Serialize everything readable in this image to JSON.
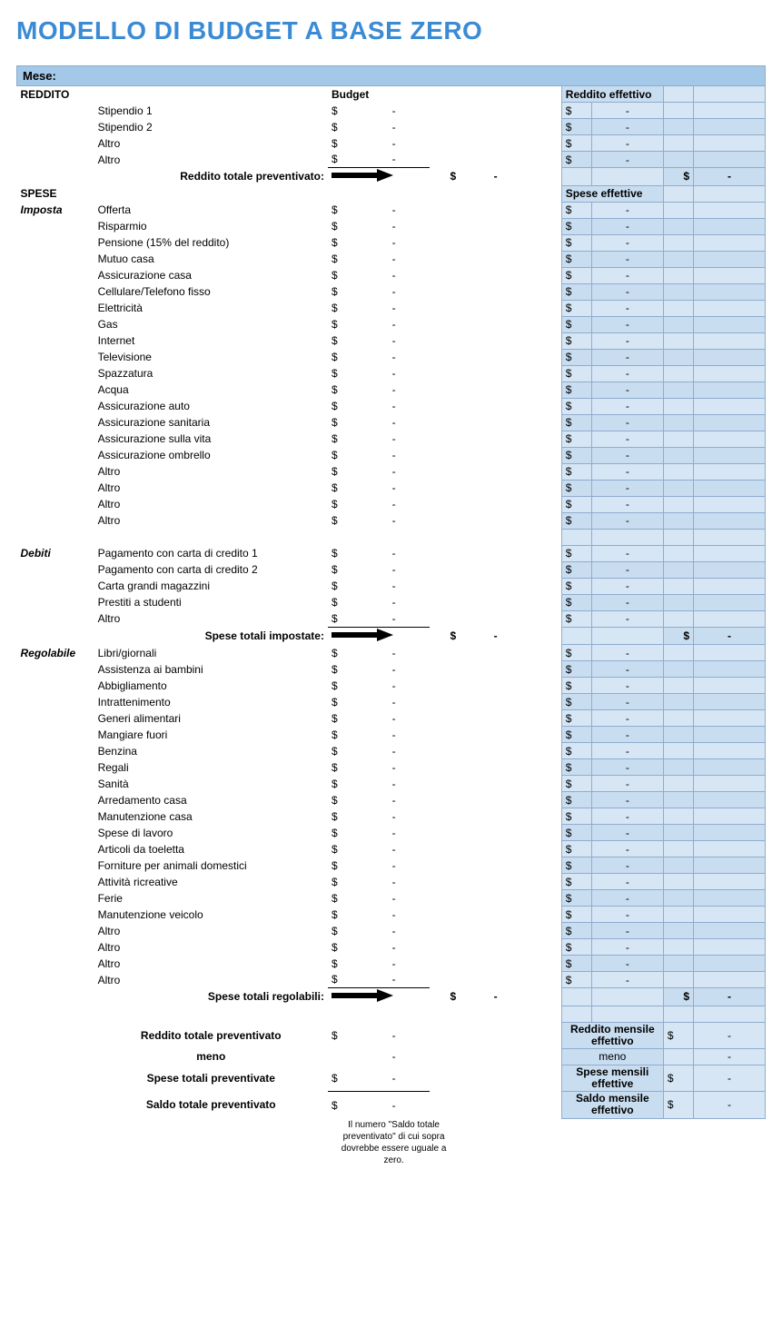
{
  "colors": {
    "title": "#3b8bd4",
    "mese_bg": "#a4c9e8",
    "actual_header_bg": "#c9ddf0",
    "actual_cell_bg": "#d6e6f5",
    "actual_cell_bg_alt": "#c9ddf0",
    "grid_border": "#8faccd",
    "text": "#000000",
    "background": "#ffffff"
  },
  "typography": {
    "title_fontsize": 28,
    "title_weight": 700,
    "body_fontsize": 12,
    "font_family": "Century Gothic / geometric sans"
  },
  "title": "MODELLO DI BUDGET A BASE ZERO",
  "mese_label": "Mese:",
  "column_headers": {
    "budget": "Budget",
    "actual_income": "Reddito effettivo",
    "actual_expenses": "Spese effettive"
  },
  "section_labels": {
    "reddito": "REDDITO",
    "spese": "SPESE",
    "imposta": "Imposta",
    "debiti": "Debiti",
    "regolabile": "Regolabile"
  },
  "income_items": [
    "Stipendio 1",
    "Stipendio 2",
    "Altro",
    "Altro"
  ],
  "imposta_items": [
    "Offerta",
    "Risparmio",
    "Pensione (15% del reddito)",
    "Mutuo casa",
    "Assicurazione casa",
    "Cellulare/Telefono fisso",
    "Elettricità",
    "Gas",
    "Internet",
    "Televisione",
    "Spazzatura",
    "Acqua",
    "Assicurazione auto",
    "Assicurazione sanitaria",
    "Assicurazione sulla vita",
    "Assicurazione ombrello",
    "Altro",
    "Altro",
    "Altro",
    "Altro"
  ],
  "debiti_items": [
    "Pagamento con carta di credito 1",
    "Pagamento con carta di credito 2",
    "Carta grandi magazzini",
    "Prestiti a studenti",
    "Altro"
  ],
  "regolabile_items": [
    "Libri/giornali",
    "Assistenza ai bambini",
    "Abbigliamento",
    "Intrattenimento",
    "Generi alimentari",
    "Mangiare fuori",
    "Benzina",
    "Regali",
    "Sanità",
    "Arredamento casa",
    "Manutenzione casa",
    "Spese di lavoro",
    "Articoli da toeletta",
    "Forniture per animali domestici",
    "Attività ricreative",
    "Ferie",
    "Manutenzione veicolo",
    "Altro",
    "Altro",
    "Altro",
    "Altro"
  ],
  "totals": {
    "income_budget_label": "Reddito totale preventivato:",
    "set_expense_label": "Spese totali impostate:",
    "adjustable_expense_label": "Spese totali regolabili:"
  },
  "summary": {
    "budget_income_label": "Reddito totale preventivato",
    "minus": "meno",
    "budget_expenses_label": "Spese totali preventivate",
    "budget_balance_label": "Saldo totale preventivato",
    "actual_income_label": "Reddito mensile effettivo",
    "actual_expenses_label": "Spese mensili effettive",
    "actual_balance_label": "Saldo mensile effettivo"
  },
  "footnote": "Il numero \"Saldo totale preventivato\" di cui sopra dovrebbe essere uguale a zero.",
  "currency_symbol": "$",
  "dash": "-",
  "cell_style": {
    "dollar_align": "left_of_pair",
    "value_align": "center_dash"
  }
}
